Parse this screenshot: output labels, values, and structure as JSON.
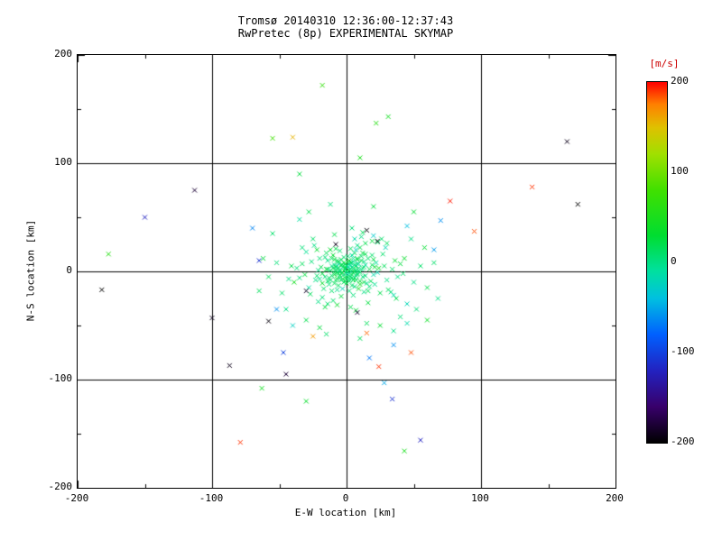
{
  "title": "Tromsø 20140310 12:36:00-12:37:43",
  "subtitle": "RwPretec (8p) EXPERIMENTAL SKYMAP",
  "axes": {
    "xlabel": "E-W location [km]",
    "ylabel": "N-S location [km]",
    "xtick_labels": [
      "-200",
      "-100",
      "0",
      "100",
      "200"
    ],
    "ytick_labels": [
      "200",
      "100",
      "0",
      "-100",
      "-200"
    ]
  },
  "colorbar": {
    "label": "[m/s]",
    "label_color": "#cc0000",
    "tick_labels": [
      "200",
      "100",
      "0",
      "-100",
      "-200"
    ],
    "min": -200,
    "max": 200,
    "stops": [
      {
        "v": -200,
        "color": "#000000"
      },
      {
        "v": -160,
        "color": "#38006b"
      },
      {
        "v": -120,
        "color": "#2222c0"
      },
      {
        "v": -80,
        "color": "#0060ff"
      },
      {
        "v": -40,
        "color": "#00c0e0"
      },
      {
        "v": -10,
        "color": "#00e0a0"
      },
      {
        "v": 30,
        "color": "#00dd30"
      },
      {
        "v": 80,
        "color": "#40e000"
      },
      {
        "v": 120,
        "color": "#a0e000"
      },
      {
        "v": 150,
        "color": "#e0c000"
      },
      {
        "v": 175,
        "color": "#ff8000"
      },
      {
        "v": 200,
        "color": "#ff0000"
      }
    ]
  },
  "chart_data": {
    "type": "scatter",
    "marker": "x",
    "title": "Tromsø 20140310 12:36:00-12:37:43",
    "subtitle": "RwPretec (8p) EXPERIMENTAL SKYMAP",
    "xlabel": "E-W location [km]",
    "ylabel": "N-S location [km]",
    "xlim": [
      -200,
      200
    ],
    "ylim": [
      -200,
      200
    ],
    "xtick_values": [
      -200,
      -100,
      0,
      100,
      200
    ],
    "ytick_values": [
      -200,
      -100,
      0,
      100,
      200
    ],
    "grid_values": [
      -100,
      0,
      100
    ],
    "minor_tick_step": 50,
    "value_label": "[m/s]",
    "value_range": [
      -200,
      200
    ],
    "points": [
      [
        -2,
        1,
        10
      ],
      [
        1,
        -3,
        5
      ],
      [
        3,
        2,
        20
      ],
      [
        -4,
        -2,
        0
      ],
      [
        0,
        5,
        15
      ],
      [
        2,
        7,
        -5
      ],
      [
        -6,
        3,
        25
      ],
      [
        5,
        -1,
        10
      ],
      [
        -1,
        -6,
        30
      ],
      [
        4,
        4,
        -10
      ],
      [
        -3,
        6,
        5
      ],
      [
        6,
        2,
        15
      ],
      [
        -5,
        -4,
        20
      ],
      [
        2,
        -7,
        0
      ],
      [
        -7,
        -1,
        10
      ],
      [
        7,
        5,
        35
      ],
      [
        0,
        -2,
        -15
      ],
      [
        -2,
        8,
        20
      ],
      [
        3,
        -5,
        5
      ],
      [
        8,
        -3,
        15
      ],
      [
        -8,
        2,
        0
      ],
      [
        1,
        9,
        25
      ],
      [
        -4,
        -8,
        10
      ],
      [
        6,
        -6,
        -5
      ],
      [
        -9,
        -3,
        30
      ],
      [
        4,
        8,
        15
      ],
      [
        -1,
        3,
        40
      ],
      [
        9,
        1,
        5
      ],
      [
        -6,
        7,
        -20
      ],
      [
        2,
        -9,
        10
      ],
      [
        -3,
        -1,
        50
      ],
      [
        7,
        -8,
        20
      ],
      [
        -9,
        6,
        0
      ],
      [
        5,
        9,
        -10
      ],
      [
        0,
        0,
        15
      ],
      [
        -5,
        0,
        25
      ],
      [
        8,
        7,
        5
      ],
      [
        -7,
        -7,
        35
      ],
      [
        3,
        0,
        -5
      ],
      [
        -1,
        -9,
        20
      ],
      [
        -1,
        2,
        8
      ],
      [
        2,
        1,
        18
      ],
      [
        -3,
        4,
        3
      ],
      [
        4,
        -3,
        22
      ],
      [
        0,
        6,
        12
      ],
      [
        -5,
        1,
        -8
      ],
      [
        6,
        0,
        28
      ],
      [
        1,
        -5,
        14
      ],
      [
        -2,
        -3,
        6
      ],
      [
        3,
        5,
        -12
      ],
      [
        5,
        3,
        9
      ],
      [
        -6,
        -2,
        17
      ],
      [
        7,
        1,
        2
      ],
      [
        -4,
        6,
        24
      ],
      [
        2,
        -2,
        -6
      ],
      [
        0,
        -7,
        11
      ],
      [
        -8,
        4,
        19
      ],
      [
        8,
        -2,
        4
      ],
      [
        -1,
        7,
        27
      ],
      [
        4,
        -6,
        13
      ],
      [
        -7,
        5,
        -3
      ],
      [
        9,
        3,
        8
      ],
      [
        -3,
        -7,
        21
      ],
      [
        6,
        6,
        1
      ],
      [
        -9,
        -1,
        16
      ],
      [
        1,
        4,
        -18
      ],
      [
        5,
        -8,
        23
      ],
      [
        -5,
        -6,
        7
      ],
      [
        10,
        -1,
        12
      ],
      [
        -10,
        3,
        26
      ],
      [
        3,
        8,
        2
      ],
      [
        -2,
        -10,
        15
      ],
      [
        11,
        2,
        -7
      ],
      [
        -6,
        9,
        20
      ],
      [
        7,
        -4,
        5
      ],
      [
        -11,
        -4,
        10
      ],
      [
        2,
        10,
        29
      ],
      [
        -8,
        -8,
        14
      ],
      [
        12,
        -5,
        3
      ],
      [
        -4,
        11,
        18
      ],
      [
        9,
        7,
        -14
      ],
      [
        -12,
        1,
        9
      ],
      [
        0,
        -11,
        22
      ],
      [
        13,
        4,
        6
      ],
      [
        -7,
        10,
        16
      ],
      [
        5,
        12,
        -2
      ],
      [
        -13,
        -6,
        11
      ],
      [
        10,
        -9,
        25
      ],
      [
        -2,
        13,
        8
      ],
      [
        8,
        11,
        19
      ],
      [
        -14,
        2,
        4
      ],
      [
        4,
        -13,
        13
      ],
      [
        14,
        6,
        -9
      ],
      [
        -9,
        -11,
        17
      ],
      [
        1,
        14,
        7
      ],
      [
        11,
        10,
        21
      ],
      [
        -14,
        -9,
        12
      ],
      [
        6,
        -14,
        2
      ],
      [
        -11,
        12,
        15
      ],
      [
        13,
        -10,
        24
      ],
      [
        12,
        3,
        10
      ],
      [
        -11,
        5,
        0
      ],
      [
        8,
        12,
        20
      ],
      [
        -6,
        -13,
        15
      ],
      [
        14,
        -4,
        5
      ],
      [
        -15,
        2,
        30
      ],
      [
        4,
        15,
        -10
      ],
      [
        -9,
        11,
        25
      ],
      [
        13,
        9,
        0
      ],
      [
        -12,
        -8,
        10
      ],
      [
        10,
        -12,
        40
      ],
      [
        -16,
        -5,
        5
      ],
      [
        6,
        17,
        15
      ],
      [
        -3,
        -16,
        -20
      ],
      [
        17,
        2,
        20
      ],
      [
        -14,
        10,
        0
      ],
      [
        11,
        14,
        10
      ],
      [
        -18,
        -2,
        25
      ],
      [
        2,
        -18,
        5
      ],
      [
        15,
        -11,
        -5
      ],
      [
        -10,
        15,
        30
      ],
      [
        19,
        6,
        15
      ],
      [
        -7,
        -17,
        0
      ],
      [
        16,
        12,
        10
      ],
      [
        -19,
        4,
        20
      ],
      [
        9,
        -16,
        45
      ],
      [
        -13,
        -12,
        5
      ],
      [
        20,
        -3,
        -15
      ],
      [
        -5,
        19,
        10
      ],
      [
        12,
        17,
        25
      ],
      [
        -20,
        -7,
        0
      ],
      [
        18,
        -9,
        15
      ],
      [
        -16,
        13,
        5
      ],
      [
        7,
        20,
        -25
      ],
      [
        21,
        4,
        30
      ],
      [
        -11,
        -18,
        10
      ],
      [
        14,
        16,
        20
      ],
      [
        -21,
        1,
        0
      ],
      [
        3,
        21,
        15
      ],
      [
        17,
        -14,
        5
      ],
      [
        -18,
        -11,
        35
      ],
      [
        22,
        8,
        -10
      ],
      [
        -8,
        21,
        20
      ],
      [
        13,
        -19,
        0
      ],
      [
        -22,
        -4,
        10
      ],
      [
        20,
        11,
        25
      ],
      [
        -15,
        17,
        15
      ],
      [
        5,
        -22,
        5
      ],
      [
        23,
        -1,
        -20
      ],
      [
        -12,
        20,
        30
      ],
      [
        19,
        15,
        10
      ],
      [
        -23,
        -8,
        0
      ],
      [
        10,
        22,
        20
      ],
      [
        16,
        -18,
        15
      ],
      [
        -20,
        12,
        5
      ],
      [
        24,
        3,
        40
      ],
      [
        -4,
        -23,
        25
      ],
      [
        21,
        -12,
        -5
      ],
      [
        -17,
        -16,
        10
      ],
      [
        8,
        24,
        0
      ],
      [
        28,
        5,
        15
      ],
      [
        -26,
        9,
        5
      ],
      [
        14,
        26,
        20
      ],
      [
        -10,
        -27,
        10
      ],
      [
        30,
        -8,
        0
      ],
      [
        -31,
        -3,
        25
      ],
      [
        6,
        30,
        -15
      ],
      [
        -22,
        20,
        30
      ],
      [
        27,
        16,
        10
      ],
      [
        -18,
        -24,
        5
      ],
      [
        25,
        -20,
        20
      ],
      [
        -33,
        7,
        15
      ],
      [
        11,
        32,
        0
      ],
      [
        -7,
        -31,
        35
      ],
      [
        34,
        2,
        10
      ],
      [
        -28,
        -15,
        -10
      ],
      [
        19,
        28,
        25
      ],
      [
        -35,
        -6,
        5
      ],
      [
        3,
        -33,
        20
      ],
      [
        31,
        -17,
        15
      ],
      [
        -24,
        24,
        0
      ],
      [
        36,
        10,
        30
      ],
      [
        -14,
        -30,
        10
      ],
      [
        29,
        22,
        -20
      ],
      [
        -37,
        3,
        5
      ],
      [
        16,
        -29,
        25
      ],
      [
        -27,
        -21,
        15
      ],
      [
        38,
        -5,
        0
      ],
      [
        -9,
        34,
        20
      ],
      [
        23,
        27,
        10
      ],
      [
        -39,
        -10,
        45
      ],
      [
        33,
        -19,
        5
      ],
      [
        -30,
        18,
        -5
      ],
      [
        12,
        36,
        15
      ],
      [
        40,
        7,
        25
      ],
      [
        -21,
        -28,
        0
      ],
      [
        26,
        30,
        10
      ],
      [
        -41,
        5,
        20
      ],
      [
        7,
        -36,
        30
      ],
      [
        35,
        -22,
        -15
      ],
      [
        -33,
        22,
        5
      ],
      [
        42,
        -2,
        10
      ],
      [
        -16,
        -33,
        25
      ],
      [
        30,
        26,
        15
      ],
      [
        -43,
        -7,
        0
      ],
      [
        20,
        33,
        -30
      ],
      [
        37,
        -25,
        20
      ],
      [
        -25,
        30,
        10
      ],
      [
        4,
        40,
        5
      ],
      [
        43,
        12,
        35
      ],
      [
        -48,
        -20,
        10
      ],
      [
        50,
        -10,
        0
      ],
      [
        -30,
        -45,
        20
      ],
      [
        15,
        -48,
        15
      ],
      [
        -52,
        8,
        5
      ],
      [
        45,
        -30,
        -20
      ],
      [
        -20,
        -52,
        25
      ],
      [
        55,
        5,
        10
      ],
      [
        -45,
        -35,
        0
      ],
      [
        25,
        -50,
        30
      ],
      [
        -58,
        -5,
        15
      ],
      [
        40,
        -42,
        5
      ],
      [
        -35,
        48,
        -10
      ],
      [
        60,
        -15,
        20
      ],
      [
        -15,
        -58,
        10
      ],
      [
        48,
        30,
        0
      ],
      [
        -62,
        12,
        25
      ],
      [
        10,
        -62,
        15
      ],
      [
        52,
        -35,
        5
      ],
      [
        -40,
        -50,
        -25
      ],
      [
        65,
        8,
        10
      ],
      [
        -28,
        55,
        20
      ],
      [
        35,
        -55,
        0
      ],
      [
        -65,
        -18,
        15
      ],
      [
        58,
        22,
        30
      ],
      [
        -12,
        62,
        5
      ],
      [
        45,
        -48,
        -15
      ],
      [
        -55,
        35,
        10
      ],
      [
        20,
        60,
        25
      ],
      [
        68,
        -25,
        0
      ],
      [
        -177,
        16,
        60
      ],
      [
        -182,
        -17,
        -200
      ],
      [
        -150,
        50,
        -120
      ],
      [
        -113,
        75,
        -180
      ],
      [
        -100,
        -43,
        -190
      ],
      [
        -79,
        -158,
        190
      ],
      [
        -63,
        -108,
        45
      ],
      [
        -65,
        10,
        -110
      ],
      [
        -55,
        123,
        80
      ],
      [
        -40,
        124,
        155
      ],
      [
        -47,
        -75,
        -100
      ],
      [
        -45,
        -95,
        -180
      ],
      [
        -30,
        -120,
        35
      ],
      [
        -35,
        90,
        25
      ],
      [
        22,
        137,
        60
      ],
      [
        -18,
        172,
        70
      ],
      [
        10,
        105,
        50
      ],
      [
        31,
        143,
        45
      ],
      [
        172,
        62,
        -200
      ],
      [
        164,
        120,
        -190
      ],
      [
        138,
        78,
        190
      ],
      [
        95,
        37,
        185
      ],
      [
        77,
        65,
        195
      ],
      [
        70,
        47,
        -60
      ],
      [
        55,
        -156,
        -120
      ],
      [
        43,
        -166,
        50
      ],
      [
        34,
        -118,
        -110
      ],
      [
        28,
        -103,
        -50
      ],
      [
        24,
        -88,
        190
      ],
      [
        48,
        -75,
        185
      ],
      [
        35,
        -68,
        -60
      ],
      [
        60,
        -45,
        40
      ],
      [
        50,
        55,
        30
      ],
      [
        45,
        42,
        -40
      ],
      [
        15,
        38,
        -195
      ],
      [
        -8,
        25,
        -190
      ],
      [
        23,
        28,
        -195
      ],
      [
        -30,
        -18,
        -185
      ],
      [
        -58,
        -46,
        -195
      ],
      [
        8,
        -38,
        -180
      ],
      [
        17,
        -80,
        -70
      ],
      [
        -52,
        -35,
        -60
      ],
      [
        65,
        20,
        -55
      ],
      [
        -70,
        40,
        -65
      ],
      [
        -87,
        -87,
        -190
      ],
      [
        15,
        -57,
        180
      ],
      [
        -25,
        -60,
        165
      ]
    ]
  }
}
